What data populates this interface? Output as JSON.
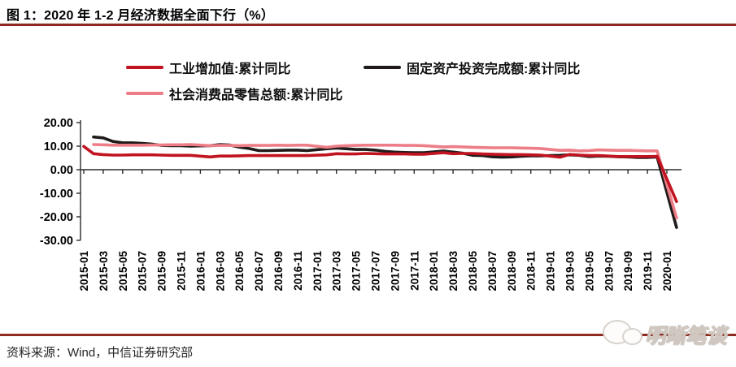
{
  "header": {
    "title": "图 1：2020 年 1-2 月经济数据全面下行（%）"
  },
  "footer": {
    "source": "资料来源：Wind，中信证券研究部",
    "watermark_text": "明晰笔谈"
  },
  "colors": {
    "rule_red": "#8e2a20",
    "line_red": "#c11320",
    "line_black": "#1f1b1a",
    "line_pink": "#ed7d87"
  },
  "chart_data": {
    "type": "line",
    "title": "图 1：2020 年 1-2 月经济数据全面下行（%）",
    "xlabel": "",
    "ylabel": "",
    "ylim": [
      -30,
      20
    ],
    "grid": false,
    "legend_position": "top",
    "yticks": [
      20,
      10,
      0,
      -10,
      -20,
      -30
    ],
    "ytick_labels": [
      "20.00",
      "10.00",
      "0.00",
      "-10.00",
      "-20.00",
      "-30.00"
    ],
    "xtick_labels": [
      "2015-01",
      "2015-03",
      "2015-05",
      "2015-07",
      "2015-09",
      "2015-11",
      "2016-01",
      "2016-03",
      "2016-05",
      "2016-07",
      "2016-09",
      "2016-11",
      "2017-01",
      "2017-03",
      "2017-05",
      "2017-07",
      "2017-09",
      "2017-11",
      "2018-01",
      "2018-03",
      "2018-05",
      "2018-07",
      "2018-09",
      "2018-11",
      "2019-01",
      "2019-03",
      "2019-05",
      "2019-07",
      "2019-09",
      "2019-11",
      "2020-01"
    ],
    "series": [
      {
        "name": "工业增加值:累计同比",
        "color": "#c11320",
        "points": [
          [
            "2015-01",
            9.9
          ],
          [
            "2015-02",
            6.8
          ],
          [
            "2015-03",
            6.4
          ],
          [
            "2015-04",
            6.2
          ],
          [
            "2015-05",
            6.2
          ],
          [
            "2015-06",
            6.3
          ],
          [
            "2015-07",
            6.3
          ],
          [
            "2015-08",
            6.3
          ],
          [
            "2015-09",
            6.2
          ],
          [
            "2015-10",
            6.1
          ],
          [
            "2015-11",
            6.1
          ],
          [
            "2015-12",
            6.1
          ],
          [
            "2016-02",
            5.4
          ],
          [
            "2016-03",
            5.8
          ],
          [
            "2016-04",
            5.8
          ],
          [
            "2016-05",
            5.9
          ],
          [
            "2016-06",
            6.0
          ],
          [
            "2016-07",
            6.0
          ],
          [
            "2016-08",
            6.0
          ],
          [
            "2016-09",
            6.0
          ],
          [
            "2016-10",
            6.0
          ],
          [
            "2016-11",
            6.0
          ],
          [
            "2016-12",
            6.0
          ],
          [
            "2017-02",
            6.3
          ],
          [
            "2017-03",
            6.8
          ],
          [
            "2017-04",
            6.7
          ],
          [
            "2017-05",
            6.7
          ],
          [
            "2017-06",
            6.9
          ],
          [
            "2017-07",
            6.8
          ],
          [
            "2017-08",
            6.7
          ],
          [
            "2017-09",
            6.7
          ],
          [
            "2017-10",
            6.7
          ],
          [
            "2017-11",
            6.6
          ],
          [
            "2017-12",
            6.6
          ],
          [
            "2018-02",
            7.2
          ],
          [
            "2018-03",
            6.8
          ],
          [
            "2018-04",
            6.9
          ],
          [
            "2018-05",
            6.9
          ],
          [
            "2018-06",
            6.7
          ],
          [
            "2018-07",
            6.6
          ],
          [
            "2018-08",
            6.5
          ],
          [
            "2018-09",
            6.4
          ],
          [
            "2018-10",
            6.4
          ],
          [
            "2018-11",
            6.3
          ],
          [
            "2018-12",
            6.2
          ],
          [
            "2019-02",
            5.3
          ],
          [
            "2019-03",
            6.5
          ],
          [
            "2019-04",
            6.2
          ],
          [
            "2019-05",
            6.0
          ],
          [
            "2019-06",
            6.0
          ],
          [
            "2019-07",
            5.8
          ],
          [
            "2019-08",
            5.6
          ],
          [
            "2019-09",
            5.6
          ],
          [
            "2019-10",
            5.6
          ],
          [
            "2019-11",
            5.6
          ],
          [
            "2019-12",
            5.7
          ],
          [
            "2020-02",
            -13.5
          ]
        ]
      },
      {
        "name": "固定资产投资完成额:累计同比",
        "color": "#1f1b1a",
        "points": [
          [
            "2015-02",
            13.9
          ],
          [
            "2015-03",
            13.5
          ],
          [
            "2015-04",
            12.0
          ],
          [
            "2015-05",
            11.4
          ],
          [
            "2015-06",
            11.4
          ],
          [
            "2015-07",
            11.2
          ],
          [
            "2015-08",
            10.9
          ],
          [
            "2015-09",
            10.3
          ],
          [
            "2015-10",
            10.2
          ],
          [
            "2015-11",
            10.2
          ],
          [
            "2015-12",
            10.0
          ],
          [
            "2016-02",
            10.2
          ],
          [
            "2016-03",
            10.7
          ],
          [
            "2016-04",
            10.5
          ],
          [
            "2016-05",
            9.6
          ],
          [
            "2016-06",
            9.0
          ],
          [
            "2016-07",
            8.1
          ],
          [
            "2016-08",
            8.1
          ],
          [
            "2016-09",
            8.2
          ],
          [
            "2016-10",
            8.3
          ],
          [
            "2016-11",
            8.3
          ],
          [
            "2016-12",
            8.1
          ],
          [
            "2017-02",
            8.9
          ],
          [
            "2017-03",
            9.2
          ],
          [
            "2017-04",
            8.9
          ],
          [
            "2017-05",
            8.6
          ],
          [
            "2017-06",
            8.6
          ],
          [
            "2017-07",
            8.3
          ],
          [
            "2017-08",
            7.8
          ],
          [
            "2017-09",
            7.5
          ],
          [
            "2017-10",
            7.3
          ],
          [
            "2017-11",
            7.2
          ],
          [
            "2017-12",
            7.2
          ],
          [
            "2018-02",
            7.9
          ],
          [
            "2018-03",
            7.5
          ],
          [
            "2018-04",
            7.0
          ],
          [
            "2018-05",
            6.1
          ],
          [
            "2018-06",
            6.0
          ],
          [
            "2018-07",
            5.5
          ],
          [
            "2018-08",
            5.3
          ],
          [
            "2018-09",
            5.4
          ],
          [
            "2018-10",
            5.7
          ],
          [
            "2018-11",
            5.9
          ],
          [
            "2018-12",
            5.9
          ],
          [
            "2019-02",
            6.1
          ],
          [
            "2019-03",
            6.3
          ],
          [
            "2019-04",
            6.1
          ],
          [
            "2019-05",
            5.6
          ],
          [
            "2019-06",
            5.8
          ],
          [
            "2019-07",
            5.7
          ],
          [
            "2019-08",
            5.5
          ],
          [
            "2019-09",
            5.4
          ],
          [
            "2019-10",
            5.2
          ],
          [
            "2019-11",
            5.2
          ],
          [
            "2019-12",
            5.4
          ],
          [
            "2020-02",
            -24.5
          ]
        ]
      },
      {
        "name": "社会消费品零售总额:累计同比",
        "color": "#ed7d87",
        "points": [
          [
            "2015-02",
            10.7
          ],
          [
            "2015-03",
            10.6
          ],
          [
            "2015-04",
            10.4
          ],
          [
            "2015-05",
            10.4
          ],
          [
            "2015-06",
            10.4
          ],
          [
            "2015-07",
            10.4
          ],
          [
            "2015-08",
            10.5
          ],
          [
            "2015-09",
            10.5
          ],
          [
            "2015-10",
            10.6
          ],
          [
            "2015-11",
            10.6
          ],
          [
            "2015-12",
            10.7
          ],
          [
            "2016-02",
            10.2
          ],
          [
            "2016-03",
            10.3
          ],
          [
            "2016-04",
            10.3
          ],
          [
            "2016-05",
            10.2
          ],
          [
            "2016-06",
            10.3
          ],
          [
            "2016-07",
            10.3
          ],
          [
            "2016-08",
            10.3
          ],
          [
            "2016-09",
            10.4
          ],
          [
            "2016-10",
            10.3
          ],
          [
            "2016-11",
            10.4
          ],
          [
            "2016-12",
            10.4
          ],
          [
            "2017-02",
            9.5
          ],
          [
            "2017-03",
            10.0
          ],
          [
            "2017-04",
            10.2
          ],
          [
            "2017-05",
            10.3
          ],
          [
            "2017-06",
            10.4
          ],
          [
            "2017-07",
            10.4
          ],
          [
            "2017-08",
            10.4
          ],
          [
            "2017-09",
            10.4
          ],
          [
            "2017-10",
            10.3
          ],
          [
            "2017-11",
            10.3
          ],
          [
            "2017-12",
            10.2
          ],
          [
            "2018-02",
            9.7
          ],
          [
            "2018-03",
            9.8
          ],
          [
            "2018-04",
            9.7
          ],
          [
            "2018-05",
            9.5
          ],
          [
            "2018-06",
            9.4
          ],
          [
            "2018-07",
            9.3
          ],
          [
            "2018-08",
            9.3
          ],
          [
            "2018-09",
            9.3
          ],
          [
            "2018-10",
            9.2
          ],
          [
            "2018-11",
            9.1
          ],
          [
            "2018-12",
            9.0
          ],
          [
            "2019-02",
            8.2
          ],
          [
            "2019-03",
            8.3
          ],
          [
            "2019-04",
            8.0
          ],
          [
            "2019-05",
            8.1
          ],
          [
            "2019-06",
            8.4
          ],
          [
            "2019-07",
            8.3
          ],
          [
            "2019-08",
            8.2
          ],
          [
            "2019-09",
            8.2
          ],
          [
            "2019-10",
            8.1
          ],
          [
            "2019-11",
            8.0
          ],
          [
            "2019-12",
            8.0
          ],
          [
            "2020-02",
            -20.5
          ]
        ]
      }
    ]
  }
}
